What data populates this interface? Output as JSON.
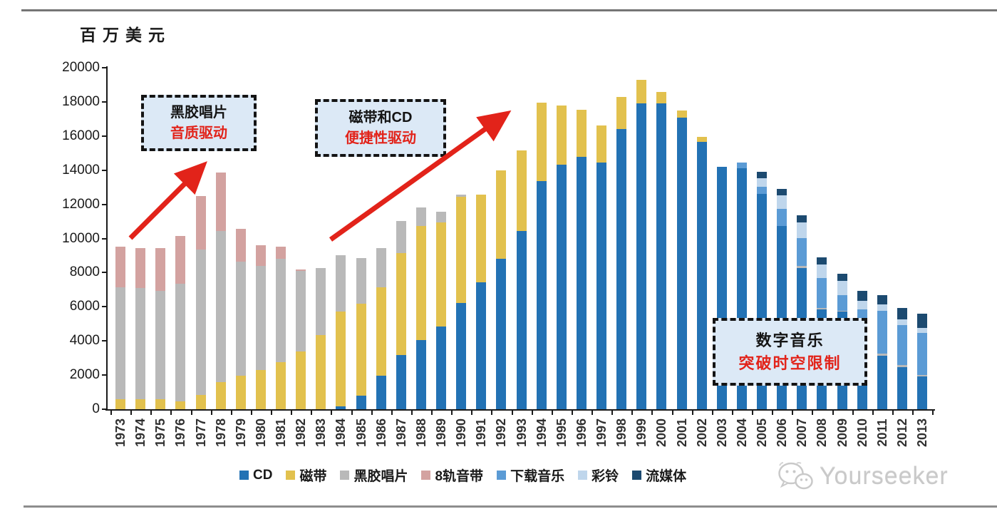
{
  "page": {
    "unit_label": "百万美元",
    "watermark_text": "Yourseeker"
  },
  "annotations": [
    {
      "title": "黑胶唱片",
      "subtitle": "音质驱动"
    },
    {
      "title": "磁带和CD",
      "subtitle": "便捷性驱动"
    },
    {
      "title": "数字音乐",
      "subtitle": "突破时空限制"
    }
  ],
  "colors": {
    "accent_red": "#e2231a",
    "callout_fill": "#dce9f6",
    "axis": "#1a1a1a"
  },
  "chart_data": {
    "type": "bar",
    "stacked": true,
    "title": "",
    "ylabel": "百万美元",
    "xlabel": "",
    "ylim": [
      0,
      20000
    ],
    "ytick_step": 2000,
    "grid": false,
    "legend_position": "bottom",
    "categories": [
      "1973",
      "1974",
      "1975",
      "1976",
      "1977",
      "1978",
      "1979",
      "1980",
      "1981",
      "1982",
      "1983",
      "1984",
      "1985",
      "1986",
      "1987",
      "1988",
      "1989",
      "1990",
      "1991",
      "1992",
      "1993",
      "1994",
      "1995",
      "1996",
      "1997",
      "1998",
      "1999",
      "2000",
      "2001",
      "2002",
      "2003",
      "2004",
      "2005",
      "2006",
      "2007",
      "2008",
      "2009",
      "2010",
      "2011",
      "2012",
      "2013"
    ],
    "series": [
      {
        "name": "CD",
        "color": "#2372b4",
        "values": [
          0,
          0,
          0,
          0,
          0,
          0,
          0,
          0,
          0,
          0,
          0,
          150,
          800,
          1950,
          3180,
          4060,
          4860,
          6230,
          7420,
          8800,
          10450,
          13360,
          14320,
          14760,
          14430,
          16390,
          17930,
          17900,
          17060,
          15650,
          14200,
          14100,
          12620,
          10750,
          8250,
          5840,
          5700,
          4600,
          3150,
          2450,
          1900
        ]
      },
      {
        "name": "磁带",
        "color": "#e2c14e",
        "values": [
          600,
          600,
          600,
          450,
          850,
          1590,
          1970,
          2290,
          2750,
          3390,
          4330,
          5590,
          5390,
          5190,
          5970,
          6690,
          6090,
          6220,
          5130,
          5200,
          4700,
          4590,
          3480,
          2760,
          2170,
          1900,
          1370,
          700,
          440,
          290,
          0,
          0,
          0,
          0,
          0,
          0,
          0,
          0,
          0,
          0,
          0
        ]
      },
      {
        "name": "黑胶唱片",
        "color": "#b9b9b9",
        "values": [
          6550,
          6480,
          6350,
          6900,
          8520,
          8860,
          6660,
          6090,
          6050,
          4710,
          3950,
          3280,
          2680,
          2290,
          1860,
          1050,
          620,
          100,
          0,
          0,
          0,
          0,
          0,
          0,
          0,
          0,
          0,
          0,
          0,
          0,
          0,
          0,
          0,
          0,
          150,
          80,
          60,
          100,
          100,
          120,
          120
        ]
      },
      {
        "name": "8轨音带",
        "color": "#d3a2a0",
        "values": [
          2350,
          2350,
          2480,
          2780,
          3100,
          3400,
          1930,
          1230,
          700,
          100,
          0,
          0,
          0,
          0,
          0,
          0,
          0,
          0,
          0,
          0,
          0,
          0,
          0,
          0,
          0,
          0,
          0,
          0,
          0,
          0,
          0,
          0,
          0,
          0,
          0,
          0,
          0,
          0,
          0,
          0,
          0
        ]
      },
      {
        "name": "下载音乐",
        "color": "#5b9bd5",
        "values": [
          0,
          0,
          0,
          0,
          0,
          0,
          0,
          0,
          0,
          0,
          0,
          0,
          0,
          0,
          0,
          0,
          0,
          0,
          0,
          0,
          0,
          0,
          0,
          0,
          0,
          0,
          0,
          0,
          0,
          0,
          0,
          330,
          420,
          980,
          1620,
          1750,
          910,
          1150,
          2500,
          2370,
          2440
        ]
      },
      {
        "name": "彩铃",
        "color": "#bfd6ec",
        "values": [
          0,
          0,
          0,
          0,
          0,
          0,
          0,
          0,
          0,
          0,
          0,
          0,
          0,
          0,
          0,
          0,
          0,
          0,
          0,
          0,
          0,
          0,
          0,
          0,
          0,
          0,
          0,
          0,
          0,
          0,
          0,
          0,
          490,
          780,
          900,
          800,
          840,
          500,
          380,
          330,
          280
        ]
      },
      {
        "name": "流媒体",
        "color": "#1c4a70",
        "values": [
          0,
          0,
          0,
          0,
          0,
          0,
          0,
          0,
          0,
          0,
          0,
          0,
          0,
          0,
          0,
          0,
          0,
          0,
          0,
          0,
          0,
          0,
          0,
          0,
          0,
          0,
          0,
          0,
          0,
          0,
          0,
          0,
          390,
          390,
          430,
          430,
          420,
          600,
          570,
          660,
          840
        ]
      }
    ]
  }
}
